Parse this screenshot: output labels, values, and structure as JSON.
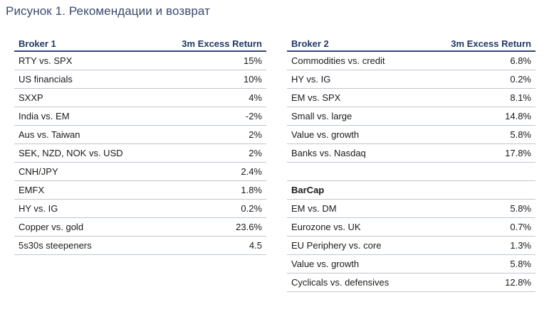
{
  "caption": "Рисунок 1. Рекомендации и возврат",
  "left_table": {
    "header": {
      "name": "Broker 1",
      "value": "3m Excess Return"
    },
    "rows": [
      {
        "name": "RTY vs. SPX",
        "value": "15%"
      },
      {
        "name": "US financials",
        "value": "10%"
      },
      {
        "name": "SXXP",
        "value": "4%"
      },
      {
        "name": "India vs. EM",
        "value": "-2%"
      },
      {
        "name": "Aus vs. Taiwan",
        "value": "2%"
      },
      {
        "name": "SEK, NZD, NOK vs. USD",
        "value": "2%"
      },
      {
        "name": "CNH/JPY",
        "value": "2.4%"
      },
      {
        "name": "EMFX",
        "value": "1.8%"
      },
      {
        "name": "HY vs. IG",
        "value": "0.2%"
      },
      {
        "name": "Copper vs. gold",
        "value": "23.6%"
      },
      {
        "name": "5s30s steepeners",
        "value": "4.5"
      }
    ]
  },
  "right_table": {
    "header": {
      "name": "Broker 2",
      "value": "3m Excess Return"
    },
    "rows": [
      {
        "name": "Commodities vs. credit",
        "value": "6.8%"
      },
      {
        "name": "HY vs. IG",
        "value": "0.2%"
      },
      {
        "name": "EM vs. SPX",
        "value": "8.1%"
      },
      {
        "name": "Small vs. large",
        "value": "14.8%"
      },
      {
        "name": "Value vs. growth",
        "value": "5.8%"
      },
      {
        "name": "Banks vs. Nasdaq",
        "value": "17.8%"
      },
      {
        "name": "",
        "value": ""
      },
      {
        "name": "BarCap",
        "value": ""
      },
      {
        "name": "EM vs. DM",
        "value": "5.8%"
      },
      {
        "name": "Eurozone vs. UK",
        "value": "0.7%"
      },
      {
        "name": "EU Periphery vs. core",
        "value": "1.3%"
      },
      {
        "name": "Value vs. growth",
        "value": "5.8%"
      },
      {
        "name": "Cyclicals vs. defensives",
        "value": "12.8%"
      }
    ]
  }
}
